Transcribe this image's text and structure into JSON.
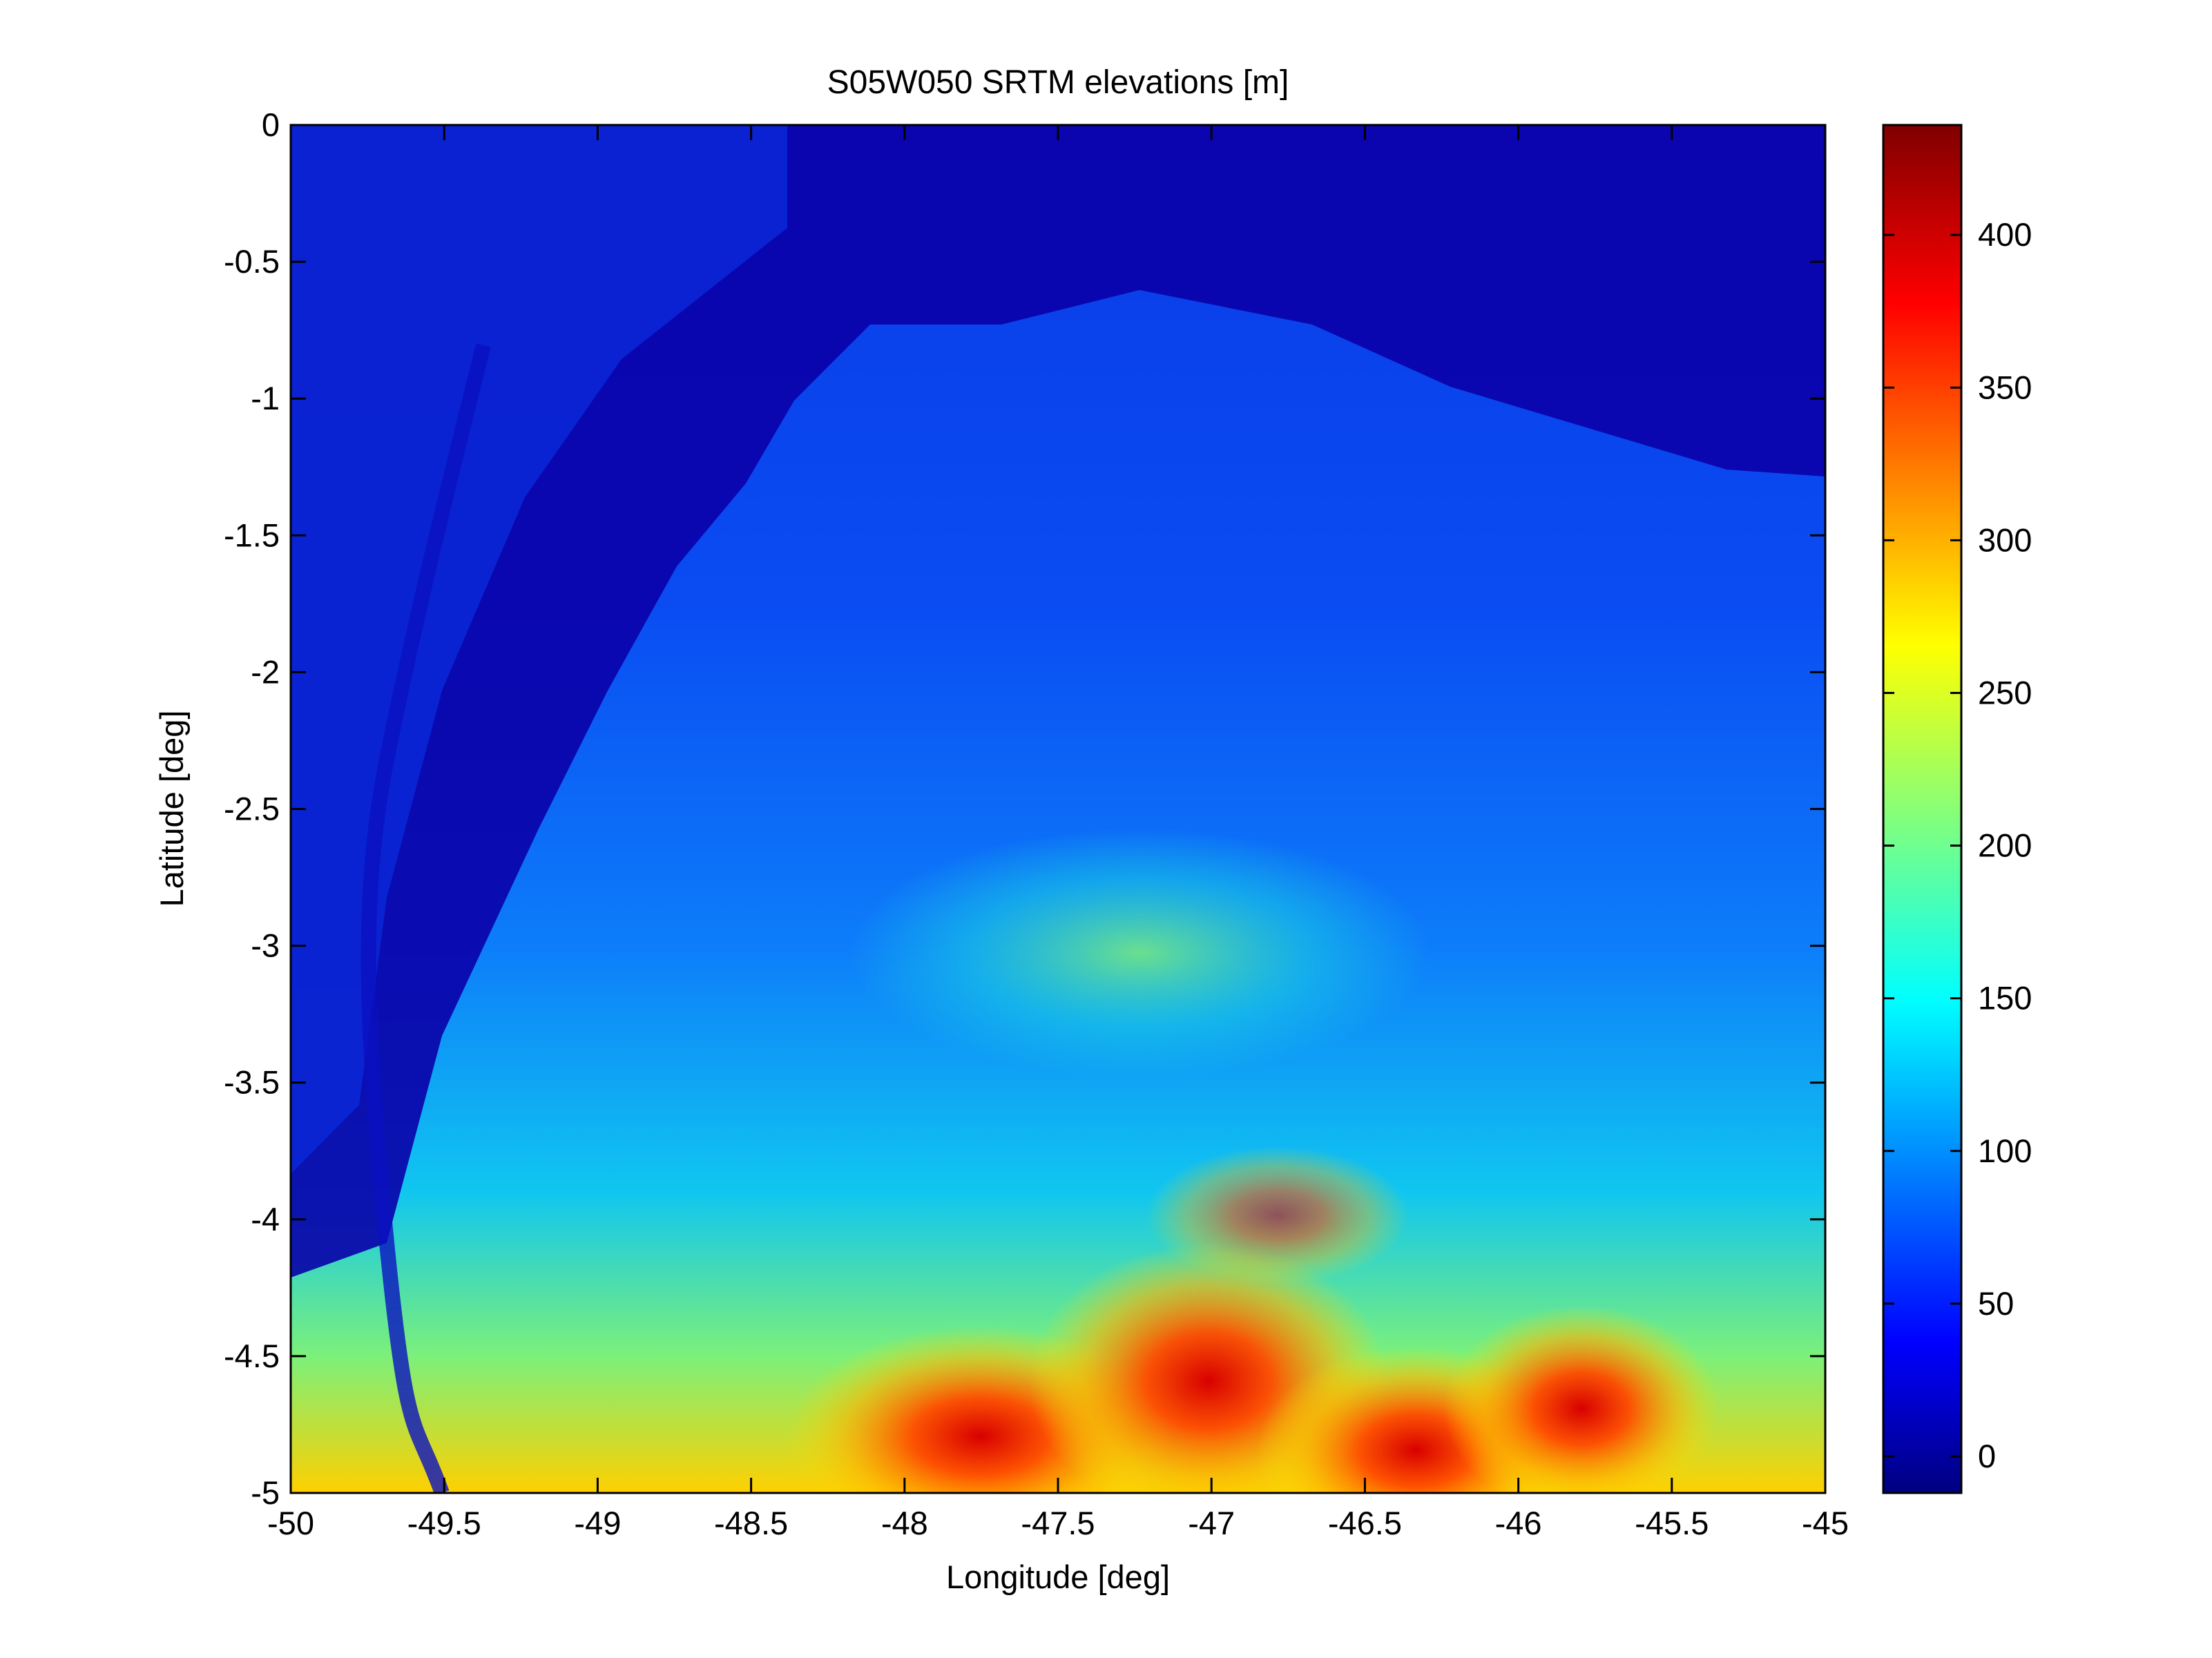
{
  "chart_data": {
    "type": "heatmap",
    "title": "S05W050 SRTM elevations [m]",
    "xlabel": "Longitude [deg]",
    "ylabel": "Latitude [deg]",
    "xlim": [
      -50,
      -45
    ],
    "ylim": [
      -5,
      0
    ],
    "x_ticks": [
      -50,
      -49.5,
      -49,
      -48.5,
      -48,
      -47.5,
      -47,
      -46.5,
      -46,
      -45.5,
      -45
    ],
    "x_tick_labels": [
      "-50",
      "-49.5",
      "-49",
      "-48.5",
      "-48",
      "-47.5",
      "-47",
      "-46.5",
      "-46",
      "-45.5",
      "-45"
    ],
    "y_ticks": [
      0,
      -0.5,
      -1,
      -1.5,
      -2,
      -2.5,
      -3,
      -3.5,
      -4,
      -4.5,
      -5
    ],
    "y_tick_labels": [
      "0",
      "-0.5",
      "-1",
      "-1.5",
      "-2",
      "-2.5",
      "-3",
      "-3.5",
      "-4",
      "-4.5",
      "-5"
    ],
    "colormap": "jet",
    "colorbar": {
      "range": [
        -12,
        436
      ],
      "ticks": [
        0,
        50,
        100,
        150,
        200,
        250,
        300,
        350,
        400
      ],
      "tick_labels": [
        "0",
        "50",
        "100",
        "150",
        "200",
        "250",
        "300",
        "350",
        "400"
      ],
      "location": "right"
    },
    "grid": false,
    "features": {
      "ocean_north": "near 0 m, dark blue, north of about -0.6 to -1.3 deg latitude",
      "lowlands_west": "about 20-80 m, Tocantins / Para river estuary near -49.5 deg",
      "highlands_south": "about 250-420 m along the southern edge (-4.3 to -5 deg)",
      "peak_region": "about 420 m near -46.3 deg, -4.9 deg"
    }
  }
}
